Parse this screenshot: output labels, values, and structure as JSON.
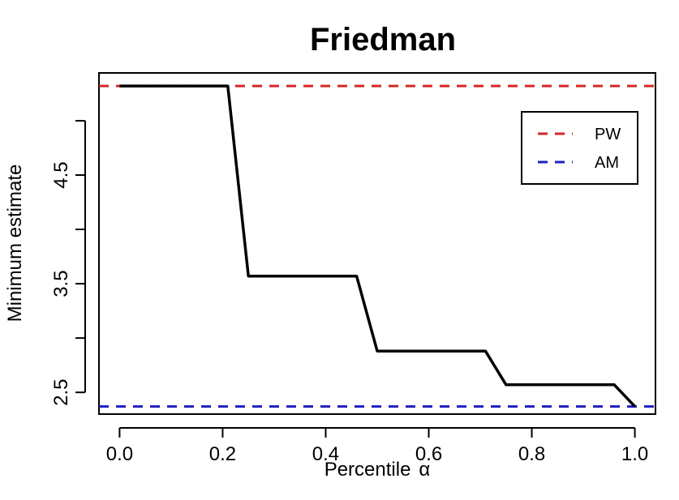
{
  "chart_data": {
    "type": "line",
    "title": "Friedman",
    "xlabel": "Percentile",
    "xlabel_symbol": "α",
    "ylabel": "Minimum estimate",
    "xlim": [
      -0.04,
      1.04
    ],
    "ylim": [
      2.3,
      5.44
    ],
    "x_ticks": [
      "0.0",
      "0.2",
      "0.4",
      "0.6",
      "0.8",
      "1.0"
    ],
    "y_ticks_labeled": [
      "2.5",
      "3.5",
      "4.5"
    ],
    "y_ticks_all": [
      2.5,
      3.0,
      3.5,
      4.0,
      4.5,
      5.0
    ],
    "grid": false,
    "legend_position": "top-right",
    "series": [
      {
        "color": "#000000",
        "style": "solid",
        "x": [
          0.0,
          0.21,
          0.25,
          0.46,
          0.5,
          0.71,
          0.75,
          0.96,
          1.0
        ],
        "y": [
          5.32,
          5.32,
          3.57,
          3.57,
          2.88,
          2.88,
          2.57,
          2.57,
          2.37
        ]
      }
    ],
    "reference_lines": [
      {
        "name": "PW",
        "y": 5.32,
        "color": "#d62728",
        "style": "dashed"
      },
      {
        "name": "AM",
        "y": 2.37,
        "color": "#1f1fbf",
        "style": "dashed"
      }
    ]
  }
}
